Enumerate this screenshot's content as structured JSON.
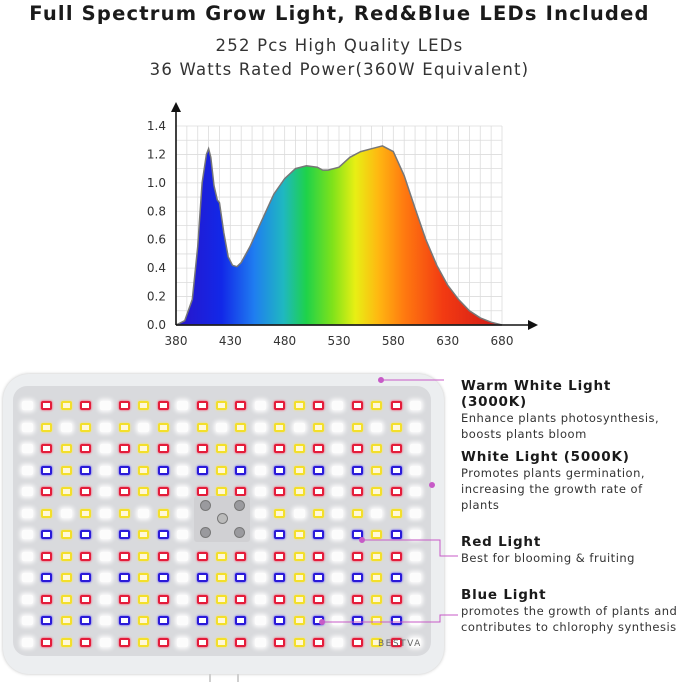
{
  "header": {
    "title": "Full Spectrum Grow Light, Red&Blue LEDs Included",
    "line1": "252 Pcs High Quality LEDs",
    "line2": "36 Watts Rated Power(360W Equivalent)"
  },
  "chart_data": {
    "type": "area",
    "title": "",
    "xlabel": "",
    "ylabel": "",
    "xlim": [
      380,
      680
    ],
    "ylim": [
      0.0,
      1.4
    ],
    "x_ticks": [
      "380",
      "430",
      "480",
      "530",
      "580",
      "630",
      "680"
    ],
    "y_ticks": [
      "0.0",
      "0.2",
      "0.4",
      "0.6",
      "0.8",
      "1.0",
      "1.2",
      "1.4"
    ],
    "grid": true,
    "gradient": "visible spectrum",
    "series": [
      {
        "x": [
          380,
          388,
          395,
          400,
          404,
          408,
          410,
          412,
          415,
          418,
          420,
          424,
          428,
          432,
          436,
          440,
          448,
          458,
          470,
          480,
          490,
          500,
          510,
          515,
          520,
          530,
          540,
          550,
          560,
          570,
          580,
          590,
          600,
          610,
          620,
          630,
          640,
          650,
          660,
          670,
          680
        ],
        "y": [
          0.0,
          0.03,
          0.18,
          0.55,
          1.0,
          1.2,
          1.24,
          1.18,
          0.98,
          0.88,
          0.86,
          0.65,
          0.48,
          0.42,
          0.41,
          0.44,
          0.55,
          0.72,
          0.92,
          1.03,
          1.1,
          1.12,
          1.11,
          1.09,
          1.09,
          1.11,
          1.18,
          1.22,
          1.24,
          1.26,
          1.22,
          1.05,
          0.82,
          0.6,
          0.42,
          0.28,
          0.18,
          0.1,
          0.05,
          0.02,
          0.0
        ]
      }
    ]
  },
  "callouts": [
    {
      "title": "Warm White Light (3000K)",
      "desc": "Enhance plants photosynthesis, boosts plants bloom"
    },
    {
      "title": "White Light (5000K)",
      "desc": "Promotes plants germination, increasing the growth rate of plants"
    },
    {
      "title": "Red Light",
      "desc": "Best for blooming & fruiting"
    },
    {
      "title": "Blue Light",
      "desc": "promotes the growth of plants and contributes to chlorophy synthesis"
    }
  ],
  "panel": {
    "brand": "BESTVA",
    "led_rows": [
      "WRYRWRYRWRYRWRYRWRYRW",
      "WYWYWYWYWYWYWYWYWYWYW",
      "WRYRWRYRWRYRWRYRWRYRW",
      "WBYBWBYBWBYBWBYBWBYBW",
      "WRYRWRYRWRYRWRYRWRYRW",
      "WYWYWYWYWYWYWYWYWYWYW",
      "WBYBWBYBWBYBWBYBWBYBW",
      "WRYRWRYRWRYRWRYRWRYRW",
      "WBYBWBYBWBYBWBYBWBYBW",
      "WRYRWRYRWRYRWRYRWRYRW",
      "WBYBWBYBWBYBWBYBWBYBW",
      "WRYRWRYRWRYRWRYRWRYRW"
    ],
    "colors": {
      "warm": "#f3df2a",
      "red": "#e41c3a",
      "blue": "#2a1ad8",
      "white": "#ffffff",
      "callout_line": "#c75ac7"
    }
  }
}
